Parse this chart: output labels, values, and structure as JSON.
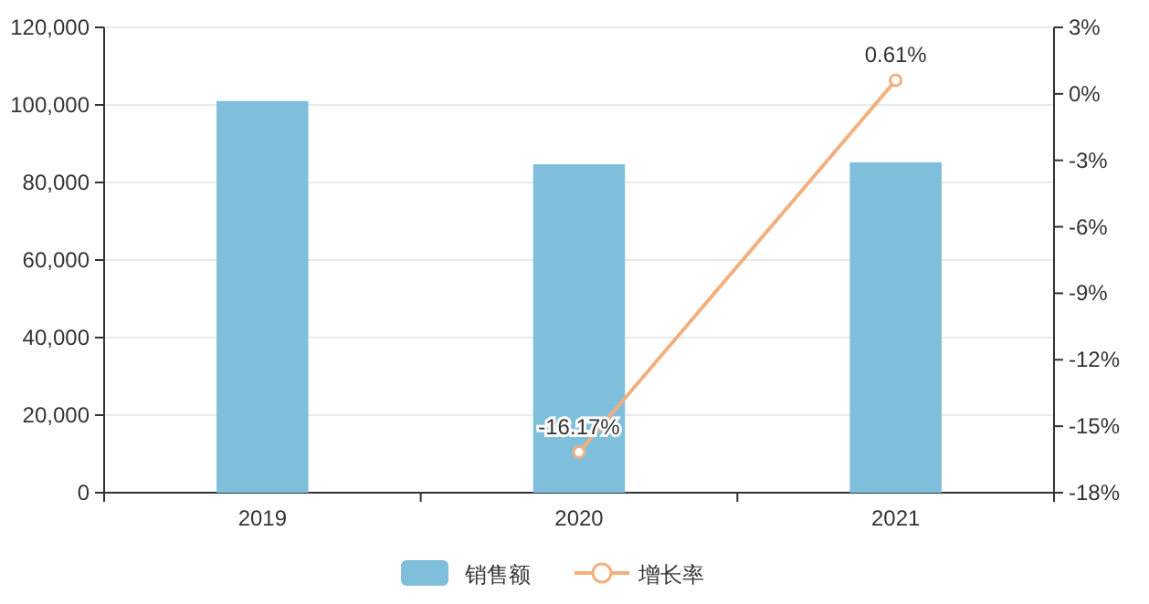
{
  "chart_data": {
    "type": "bar",
    "categories": [
      "2019",
      "2020",
      "2021"
    ],
    "series": [
      {
        "name": "销售额",
        "type": "bar",
        "color": "#7fbfdb",
        "values": [
          101000,
          84700,
          85200
        ]
      },
      {
        "name": "增长率",
        "type": "line",
        "axis": "y2",
        "color": "#f2b07e",
        "marker": "circle",
        "values": [
          null,
          -16.17,
          0.61
        ],
        "value_labels": [
          null,
          "-16.17%",
          "0.61%"
        ]
      }
    ],
    "ylim": [
      0,
      120000
    ],
    "yticks": [
      0,
      {
        "value": 20000,
        "label": "20,000"
      },
      {
        "value": 40000,
        "label": "40,000"
      },
      {
        "value": 60000,
        "label": "60,000"
      },
      {
        "value": 80000,
        "label": "80,000"
      },
      {
        "value": 100000,
        "label": "100,000"
      },
      {
        "value": 120000,
        "label": "120,000"
      }
    ],
    "y2lim": [
      -18,
      3
    ],
    "y2ticks": [
      {
        "value": -18,
        "label": "-18%"
      },
      {
        "value": -15,
        "label": "-15%"
      },
      {
        "value": -12,
        "label": "-12%"
      },
      {
        "value": -9,
        "label": "-9%"
      },
      {
        "value": -6,
        "label": "-6%"
      },
      {
        "value": -3,
        "label": "-3%"
      },
      {
        "value": 0,
        "label": "0%"
      },
      {
        "value": 3,
        "label": "3%"
      }
    ],
    "grid": "y",
    "legend": "bottom"
  }
}
